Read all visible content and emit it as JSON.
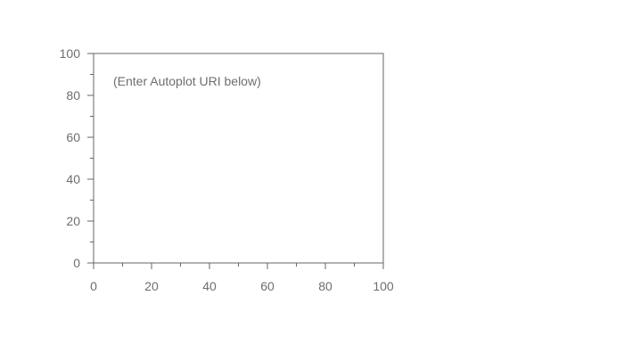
{
  "chart_data": {
    "type": "scatter",
    "title": "",
    "xlabel": "",
    "ylabel": "",
    "xlim": [
      0,
      100
    ],
    "ylim": [
      0,
      100
    ],
    "x_ticks_major": [
      0,
      20,
      40,
      60,
      80,
      100
    ],
    "x_ticks_minor": [
      10,
      30,
      50,
      70,
      90
    ],
    "y_ticks_major": [
      0,
      20,
      40,
      60,
      80,
      100
    ],
    "y_ticks_minor": [
      10,
      30,
      50,
      70,
      90
    ],
    "series": [],
    "grid": false,
    "annotation": "(Enter Autoplot URI below)"
  },
  "colors": {
    "axis": "#666666",
    "tick_label": "#6e6e6e",
    "annotation": "#6e6e6e",
    "background": "#ffffff"
  }
}
